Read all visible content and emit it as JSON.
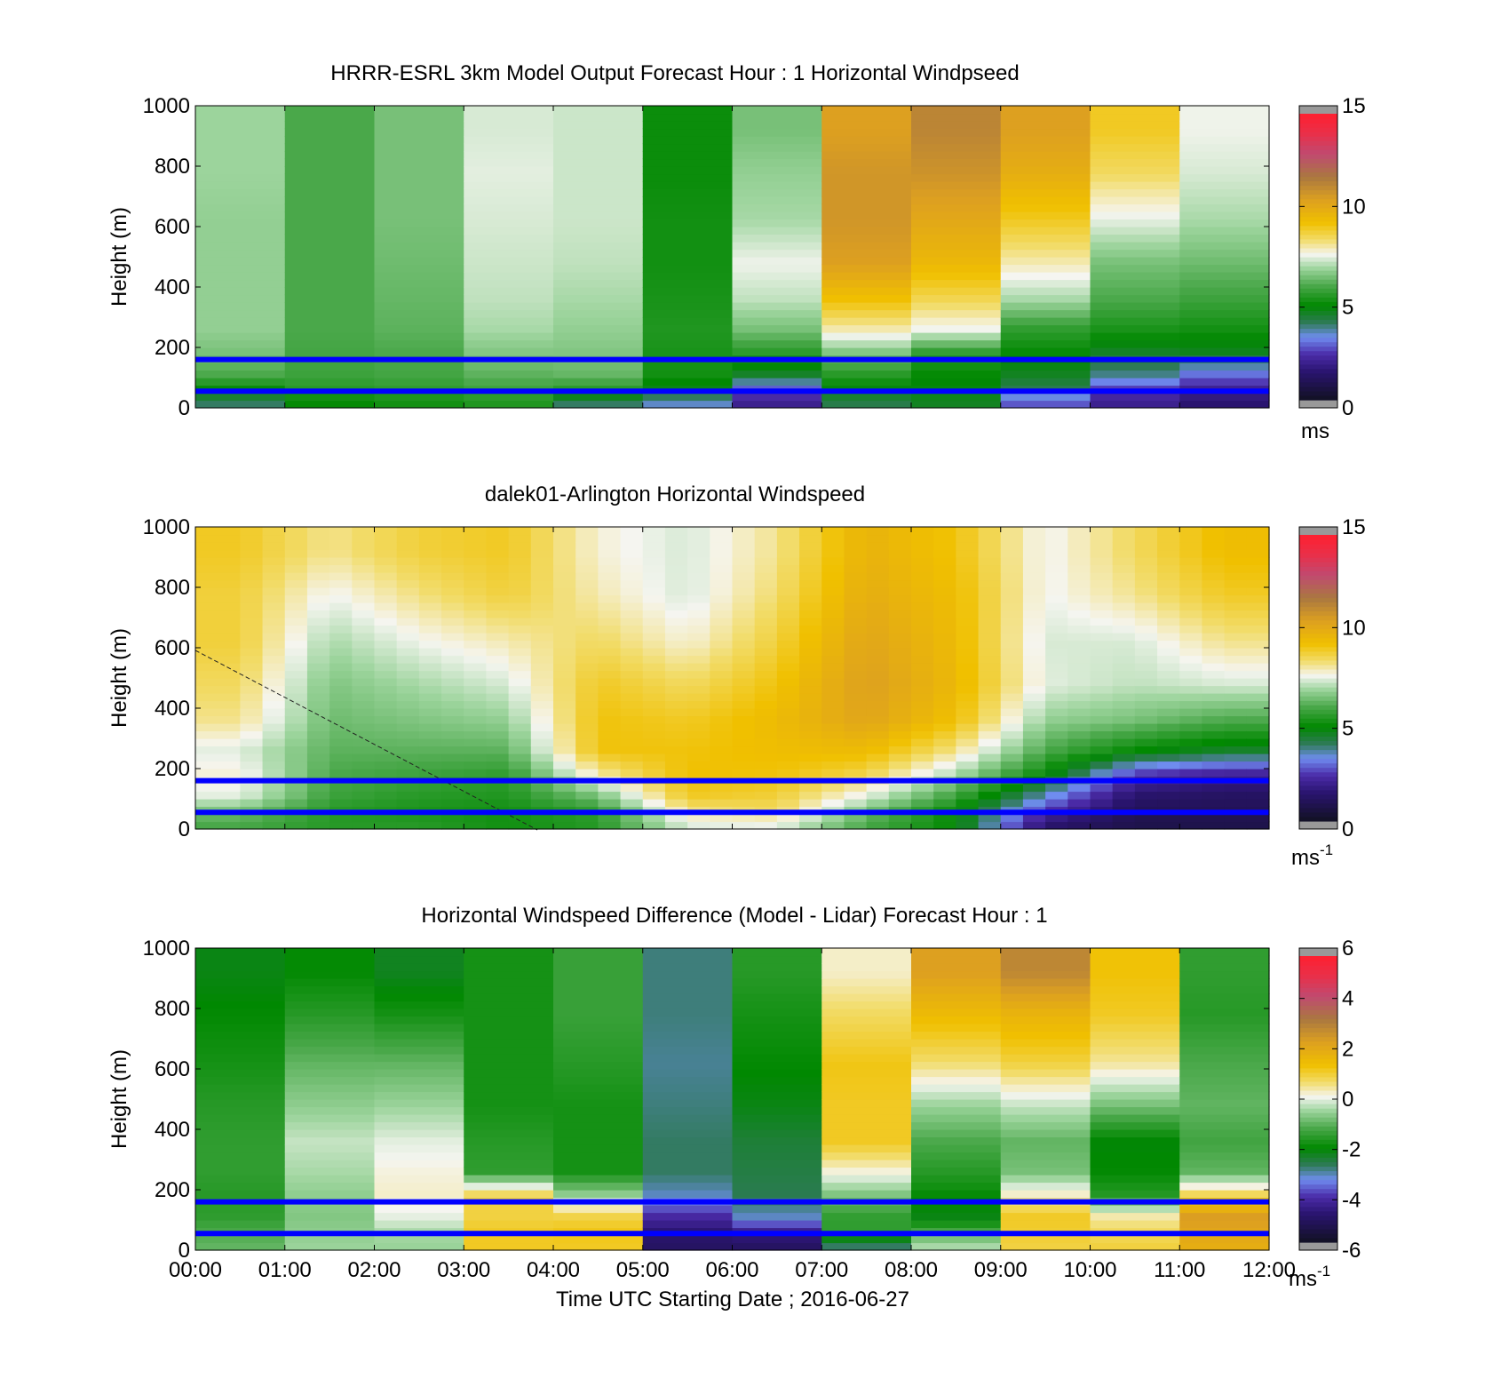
{
  "figure": {
    "xlabel": "Time UTC  Starting Date ; 2016-06-27",
    "x_tick_labels": [
      "00:00",
      "01:00",
      "02:00",
      "03:00",
      "04:00",
      "05:00",
      "06:00",
      "07:00",
      "08:00",
      "09:00",
      "10:00",
      "11:00",
      "12:00"
    ],
    "y_tick_labels": [
      "0",
      "200",
      "400",
      "600",
      "800",
      "1000"
    ],
    "ylabel": "Height (m)",
    "reference_lines_m": [
      55,
      160
    ]
  },
  "panels": [
    {
      "title": "HRRR-ESRL 3km Model Output   Forecast Hour : 1 Horizontal Windpseed",
      "colorbar": {
        "ticks": [
          "0",
          "5",
          "10",
          "15"
        ],
        "unit": "ms",
        "unit_sup": ""
      }
    },
    {
      "title": "dalek01-Arlington  Horizontal Windspeed",
      "colorbar": {
        "ticks": [
          "0",
          "5",
          "10",
          "15"
        ],
        "unit": "ms",
        "unit_sup": "-1"
      }
    },
    {
      "title": "Horizontal Windspeed Difference (Model - Lidar) Forecast Hour : 1",
      "colorbar": {
        "ticks": [
          "-6",
          "-4",
          "-2",
          "0",
          "2",
          "4",
          "6"
        ],
        "unit": "ms",
        "unit_sup": "-1"
      }
    }
  ],
  "chart_data": [
    {
      "type": "heatmap",
      "title": "HRRR-ESRL 3km Model Output   Forecast Hour : 1 Horizontal Windpseed",
      "xlabel": "",
      "ylabel": "Height (m)",
      "x_hours": [
        0.5,
        1.5,
        2.5,
        3.5,
        4.5,
        5.5,
        6.5,
        7.5,
        8.5,
        9.5,
        10.5,
        11.5
      ],
      "y_levels_m": [
        20,
        60,
        110,
        180,
        260,
        360,
        480,
        620,
        780,
        920
      ],
      "values_ms": [
        [
          4.0,
          5.0,
          6.0,
          6.5,
          6.8,
          6.8,
          6.8,
          6.8,
          6.9,
          6.9
        ],
        [
          5.0,
          5.5,
          5.8,
          5.9,
          6.0,
          6.0,
          6.0,
          6.0,
          6.0,
          6.0
        ],
        [
          5.2,
          5.6,
          5.9,
          6.0,
          6.2,
          6.3,
          6.4,
          6.5,
          6.5,
          6.5
        ],
        [
          5.4,
          5.8,
          6.2,
          6.6,
          7.0,
          7.2,
          7.3,
          7.4,
          7.5,
          7.4
        ],
        [
          4.0,
          5.5,
          6.3,
          6.6,
          6.8,
          7.0,
          7.2,
          7.3,
          7.3,
          7.3
        ],
        [
          3.5,
          4.7,
          5.2,
          5.3,
          5.4,
          5.3,
          5.2,
          5.2,
          5.1,
          5.1
        ],
        [
          2.0,
          2.8,
          4.5,
          5.5,
          6.5,
          7.2,
          7.6,
          7.0,
          6.8,
          6.5
        ],
        [
          4.2,
          4.8,
          5.5,
          6.5,
          8.0,
          9.3,
          10.5,
          10.8,
          10.8,
          10.5
        ],
        [
          4.6,
          4.8,
          5.0,
          5.5,
          7.6,
          8.6,
          9.6,
          10.2,
          10.9,
          11.3
        ],
        [
          2.8,
          4.1,
          4.6,
          5.0,
          5.6,
          7.0,
          8.0,
          9.0,
          10.0,
          10.5
        ],
        [
          2.0,
          2.5,
          3.8,
          4.5,
          5.3,
          6.0,
          6.5,
          7.5,
          8.5,
          9.0
        ],
        [
          1.5,
          2.0,
          3.0,
          4.6,
          5.2,
          5.8,
          6.4,
          7.0,
          7.4,
          7.6
        ]
      ],
      "vmin": 0,
      "vmax": 15,
      "xlim": [
        "00:00",
        "12:00"
      ],
      "ylim": [
        0,
        1000
      ],
      "colorbar_label": "ms"
    },
    {
      "type": "heatmap",
      "title": "dalek01-Arlington  Horizontal Windspeed",
      "xlabel": "",
      "ylabel": "Height (m)",
      "x_hours": [
        0.5,
        1.5,
        2.5,
        3.5,
        4.5,
        5.5,
        6.5,
        7.5,
        8.5,
        9.5,
        10.5,
        11.5
      ],
      "y_levels_m": [
        20,
        60,
        110,
        180,
        260,
        360,
        480,
        620,
        780,
        920
      ],
      "values_ms": [
        [
          6.0,
          6.5,
          7.5,
          7.8,
          7.5,
          8.2,
          8.5,
          8.8,
          8.8,
          9.0
        ],
        [
          5.5,
          5.5,
          5.8,
          6.0,
          6.2,
          6.4,
          6.6,
          7.0,
          7.6,
          8.2
        ],
        [
          5.5,
          5.3,
          5.5,
          5.8,
          6.2,
          6.6,
          7.0,
          7.6,
          8.3,
          8.8
        ],
        [
          5.2,
          5.2,
          5.4,
          5.6,
          6.2,
          6.8,
          7.4,
          8.0,
          8.8,
          9.0
        ],
        [
          5.5,
          5.6,
          6.5,
          8.0,
          9.2,
          9.2,
          9.0,
          8.5,
          8.0,
          7.8
        ],
        [
          7.5,
          8.2,
          9.0,
          9.3,
          9.2,
          9.0,
          8.5,
          7.8,
          7.4,
          7.4
        ],
        [
          7.6,
          8.5,
          8.8,
          9.2,
          9.4,
          9.5,
          9.2,
          8.8,
          8.4,
          8.2
        ],
        [
          6.0,
          6.5,
          7.5,
          8.6,
          9.5,
          10.3,
          10.5,
          10.3,
          10.0,
          9.8
        ],
        [
          5.0,
          5.0,
          5.8,
          7.0,
          8.2,
          9.3,
          9.6,
          9.5,
          9.4,
          9.2
        ],
        [
          1.5,
          2.5,
          3.5,
          5.0,
          6.0,
          6.8,
          7.5,
          7.4,
          7.6,
          7.6
        ],
        [
          0.8,
          1.0,
          1.4,
          2.4,
          5.0,
          6.5,
          7.2,
          7.4,
          8.2,
          8.5
        ],
        [
          0.8,
          1.0,
          1.2,
          2.0,
          4.5,
          6.0,
          7.4,
          8.2,
          9.0,
          9.4
        ]
      ],
      "vmin": 0,
      "vmax": 15,
      "xlim": [
        "00:00",
        "12:00"
      ],
      "ylim": [
        0,
        1000
      ],
      "colorbar_label": "ms-1"
    },
    {
      "type": "heatmap",
      "title": "Horizontal Windspeed Difference (Model - Lidar) Forecast Hour : 1",
      "xlabel": "Time UTC  Starting Date ; 2016-06-27",
      "ylabel": "Height (m)",
      "x_hours": [
        0.5,
        1.5,
        2.5,
        3.5,
        4.5,
        5.5,
        6.5,
        7.5,
        8.5,
        9.5,
        10.5,
        11.5
      ],
      "y_levels_m": [
        20,
        60,
        110,
        180,
        260,
        360,
        480,
        620,
        780,
        920
      ],
      "values_ms": [
        [
          -1.0,
          -1.2,
          -1.5,
          -1.6,
          -1.5,
          -1.5,
          -1.6,
          -1.8,
          -2.0,
          -2.2
        ],
        [
          -0.5,
          -0.6,
          -0.7,
          -0.6,
          -0.4,
          -0.2,
          -0.6,
          -1.0,
          -1.6,
          -2.0
        ],
        [
          -0.5,
          -0.4,
          0.0,
          0.3,
          0.2,
          0.0,
          -0.5,
          -1.0,
          -1.8,
          -2.3
        ],
        [
          1.2,
          1.2,
          1.0,
          1.0,
          -1.5,
          -1.6,
          -1.8,
          -1.8,
          -1.8,
          -1.8
        ],
        [
          1.2,
          1.3,
          1.0,
          -0.5,
          -1.8,
          -1.8,
          -1.8,
          -1.6,
          -1.4,
          -1.4
        ],
        [
          -5.0,
          -4.8,
          -4.2,
          -3.2,
          -2.8,
          -2.8,
          -2.9,
          -3.0,
          -2.9,
          -2.9
        ],
        [
          -5.0,
          -4.5,
          -3.2,
          -2.7,
          -2.6,
          -2.5,
          -2.2,
          -2.0,
          -1.8,
          -1.6
        ],
        [
          -2.8,
          -1.5,
          -1.5,
          -0.8,
          0.2,
          1.2,
          1.2,
          1.3,
          0.8,
          0.3
        ],
        [
          -0.4,
          -1.2,
          -2.2,
          -2.0,
          -1.6,
          -1.2,
          -0.5,
          0.7,
          1.6,
          2.4
        ],
        [
          1.0,
          1.1,
          1.2,
          0.4,
          -0.8,
          -1.0,
          -0.2,
          1.0,
          1.8,
          3.0
        ],
        [
          1.0,
          0.8,
          0.5,
          -1.6,
          -2.0,
          -2.1,
          -0.8,
          0.5,
          1.2,
          1.4
        ],
        [
          2.0,
          2.2,
          2.5,
          1.0,
          -1.0,
          -1.3,
          -1.0,
          -1.2,
          -1.6,
          -1.5
        ]
      ],
      "vmin": -6,
      "vmax": 6,
      "xlim": [
        "00:00",
        "12:00"
      ],
      "ylim": [
        0,
        1000
      ],
      "colorbar_label": "ms-1"
    }
  ],
  "colormap": {
    "name": "windspeed",
    "stops": [
      [
        0.0,
        "#111122"
      ],
      [
        0.1,
        "#2a1470"
      ],
      [
        0.16,
        "#4b2ba8"
      ],
      [
        0.22,
        "#6f8df0"
      ],
      [
        0.27,
        "#2f7a58"
      ],
      [
        0.33,
        "#008800"
      ],
      [
        0.4,
        "#4aa84a"
      ],
      [
        0.46,
        "#9cd49c"
      ],
      [
        0.51,
        "#f5f5f0"
      ],
      [
        0.56,
        "#f2dc6a"
      ],
      [
        0.62,
        "#f0c000"
      ],
      [
        0.7,
        "#dda020"
      ],
      [
        0.78,
        "#aa7840"
      ],
      [
        0.86,
        "#c04a70"
      ],
      [
        0.93,
        "#e8304a"
      ],
      [
        1.0,
        "#ff2030"
      ]
    ],
    "cap_color": "#999999"
  }
}
